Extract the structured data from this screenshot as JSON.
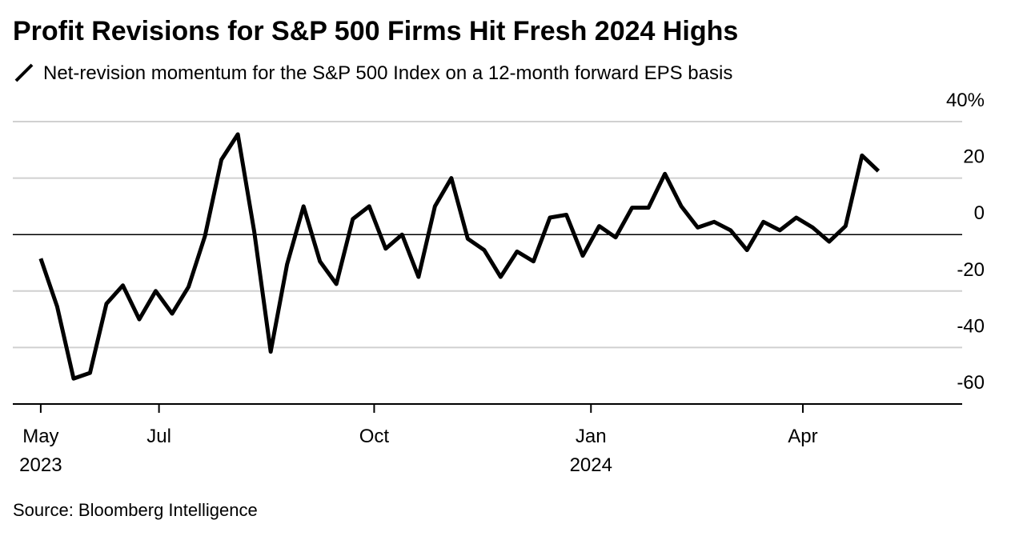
{
  "chart_data": {
    "type": "line",
    "title": "Profit Revisions for S&P 500 Firms Hit Fresh 2024 Highs",
    "source": "Source: Bloomberg Intelligence",
    "x": [
      0,
      1,
      2,
      3,
      4,
      5,
      6,
      7,
      8,
      9,
      10,
      11,
      12,
      13,
      14,
      15,
      16,
      17,
      18,
      19,
      20,
      21,
      22,
      23,
      24,
      25,
      26,
      27,
      28,
      29,
      30,
      31,
      32,
      33,
      34,
      35,
      36,
      37,
      38,
      39,
      40,
      41,
      42,
      43,
      44,
      45,
      46,
      47,
      48,
      49,
      50,
      51
    ],
    "series": [
      {
        "name": "Net-revision momentum for the S&P 500 Index on a 12-month forward EPS basis",
        "color": "#000000",
        "values": [
          -8.5,
          -25.5,
          -51,
          -49,
          -24.5,
          -18,
          -30,
          -20,
          -28,
          -18.5,
          -0.5,
          26.5,
          35.5,
          1,
          -41.5,
          -10.5,
          10,
          -9.5,
          -17.5,
          5.5,
          10,
          -5,
          0,
          -15,
          10,
          20,
          -1.5,
          -5.5,
          -15,
          -6,
          -9.5,
          6,
          7,
          -7.5,
          3,
          -1,
          9.5,
          9.5,
          21.5,
          10,
          2.5,
          4.5,
          1.5,
          -5.5,
          4.5,
          1.5,
          6,
          2.5,
          -2.5,
          3,
          28,
          22.5
        ]
      }
    ],
    "xlim": [
      -1.7,
      56.1
    ],
    "xticks": [
      {
        "value": 0,
        "label": "May",
        "sublabel": "2023"
      },
      {
        "value": 7.2,
        "label": "Jul"
      },
      {
        "value": 20.3,
        "label": "Oct"
      },
      {
        "value": 33.5,
        "label": "Jan",
        "sublabel": "2024"
      },
      {
        "value": 46.4,
        "label": "Apr"
      }
    ],
    "ylim": [
      -60,
      40
    ],
    "yticks": [
      {
        "value": 40,
        "label": "40%"
      },
      20,
      0,
      -20,
      -40,
      -60
    ],
    "grid": true
  }
}
